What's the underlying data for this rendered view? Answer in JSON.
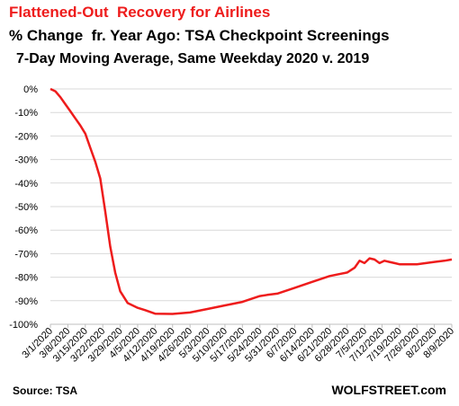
{
  "header": {
    "title": "Flattened-Out  Recovery for Airlines",
    "subtitle": "% Change  fr. Year Ago: TSA Checkpoint Screenings",
    "subtitle2": "7-Day Moving Average, Same Weekday 2020 v. 2019"
  },
  "footer": {
    "source": "Source: TSA",
    "brand": "WOLFSTREET.com"
  },
  "colors": {
    "line": "#ee1c1c",
    "title": "#ee1c1c",
    "grid": "#d9d9d9",
    "axis": "#bfbfbf"
  },
  "chart_data": {
    "type": "line",
    "grid": true,
    "legend": "none",
    "ylim": [
      -100,
      0
    ],
    "xlim_days": [
      0,
      161
    ],
    "y_ticks": [
      {
        "value": 0,
        "label": "0%"
      },
      {
        "value": -10,
        "label": "-10%"
      },
      {
        "value": -20,
        "label": "-20%"
      },
      {
        "value": -30,
        "label": "-30%"
      },
      {
        "value": -40,
        "label": "-40%"
      },
      {
        "value": -50,
        "label": "-50%"
      },
      {
        "value": -60,
        "label": "-60%"
      },
      {
        "value": -70,
        "label": "-70%"
      },
      {
        "value": -80,
        "label": "-80%"
      },
      {
        "value": -90,
        "label": "-90%"
      },
      {
        "value": -100,
        "label": "-100%"
      }
    ],
    "x_ticks": [
      "3/1/2020",
      "3/8/2020",
      "3/15/2020",
      "3/22/2020",
      "3/29/2020",
      "4/5/2020",
      "4/12/2020",
      "4/19/2020",
      "4/26/2020",
      "5/3/2020",
      "5/10/2020",
      "5/17/2020",
      "5/24/2020",
      "5/31/2020",
      "6/7/2020",
      "6/14/2020",
      "6/21/2020",
      "6/28/2020",
      "7/5/2020",
      "7/12/2020",
      "7/19/2020",
      "7/26/2020",
      "8/2/2020",
      "8/9/2020"
    ],
    "series": [
      {
        "x": [
          "3/1/2020",
          "3/3/2020",
          "3/5/2020",
          "3/7/2020",
          "3/9/2020",
          "3/11/2020",
          "3/13/2020",
          "3/15/2020",
          "3/17/2020",
          "3/19/2020",
          "3/21/2020",
          "3/23/2020",
          "3/25/2020",
          "3/27/2020",
          "3/29/2020",
          "4/1/2020",
          "4/5/2020",
          "4/8/2020",
          "4/12/2020",
          "4/19/2020",
          "4/26/2020",
          "5/3/2020",
          "5/10/2020",
          "5/17/2020",
          "5/24/2020",
          "5/27/2020",
          "5/31/2020",
          "6/7/2020",
          "6/14/2020",
          "6/21/2020",
          "6/28/2020",
          "7/1/2020",
          "7/3/2020",
          "7/5/2020",
          "7/7/2020",
          "7/9/2020",
          "7/11/2020",
          "7/13/2020",
          "7/15/2020",
          "7/17/2020",
          "7/19/2020",
          "7/26/2020",
          "8/2/2020",
          "8/6/2020",
          "8/9/2020"
        ],
        "values": [
          0,
          -1,
          -3.5,
          -6.5,
          -9.5,
          -12.5,
          -15.5,
          -19,
          -25,
          -31,
          -38,
          -52,
          -67,
          -78,
          -86,
          -91,
          -93,
          -94,
          -95.5,
          -95.6,
          -95,
          -93.5,
          -92,
          -90.5,
          -88,
          -87.5,
          -87,
          -84.5,
          -82,
          -79.5,
          -78,
          -76,
          -73,
          -74,
          -72,
          -72.5,
          -74,
          -73,
          -73.5,
          -74,
          -74.5,
          -74.5,
          -73.5,
          -73,
          -72.5
        ]
      }
    ]
  }
}
